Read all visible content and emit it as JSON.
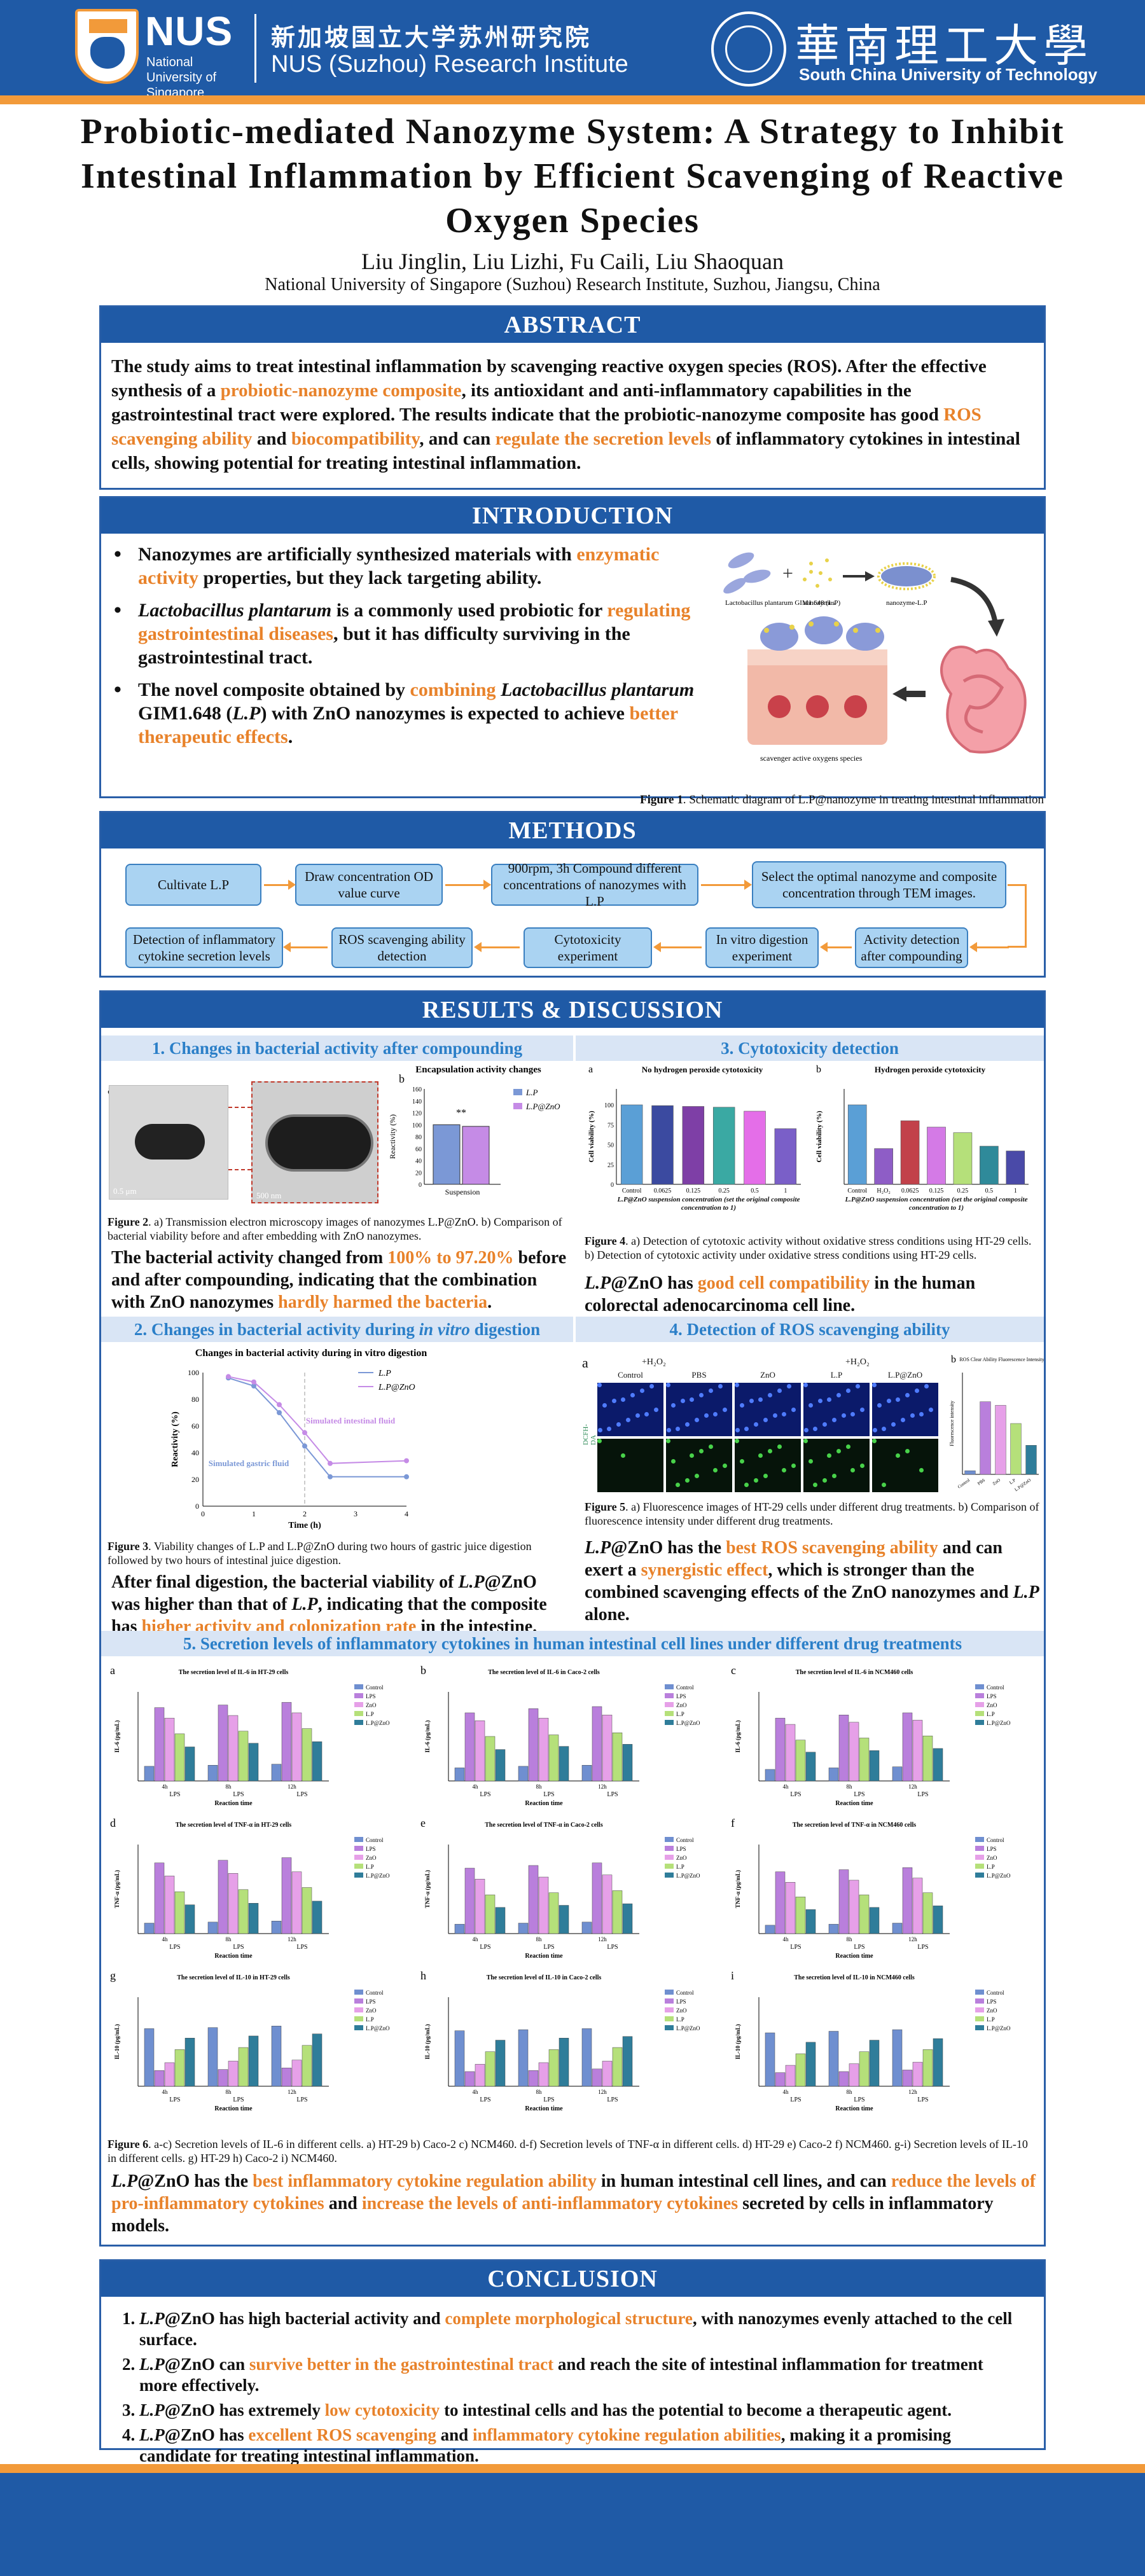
{
  "header": {
    "nus_logo_text": "NUS",
    "nus_sub": "National University of Singapore",
    "nus_cn": "新加坡国立大学苏州研究院",
    "nus_en": "NUS (Suzhou) Research Institute",
    "scut_cn": "華南理工大學",
    "scut_en": "South China University of Technology"
  },
  "title": "Probiotic-mediated Nanozyme System: A Strategy to Inhibit Intestinal Inflammation by Efficient Scavenging of Reactive Oxygen Species",
  "authors": "Liu Jinglin, Liu Lizhi, Fu Caili, Liu Shaoquan",
  "affiliation": "National University of Singapore (Suzhou) Research Institute, Suzhou, Jiangsu, China",
  "abstract": {
    "heading": "ABSTRACT",
    "t1": "The study aims to treat intestinal inflammation by scavenging reactive oxygen species (ROS). After the effective synthesis of a ",
    "h1": "probiotic-nanozyme composite",
    "t2": ", its antioxidant and anti-inflammatory capabilities in the gastrointestinal tract were explored. The results indicate that the probiotic-nanozyme composite has good ",
    "h2": "ROS scavenging ability",
    "t3": " and ",
    "h3": "biocompatibility",
    "t4": ", and can ",
    "h4": "regulate the secretion levels",
    "t5": " of inflammatory cytokines in intestinal cells, showing potential for treating intestinal inflammation."
  },
  "introduction": {
    "heading": "INTRODUCTION",
    "b1_t1": "Nanozymes are artificially synthesized materials with ",
    "b1_h1": "enzymatic activity",
    "b1_t2": " properties, but they lack targeting ability.",
    "b2_i1": "Lactobacillus plantarum",
    "b2_t1": " is a commonly used probiotic for ",
    "b2_h1": "regulating gastrointestinal diseases",
    "b2_t2": ", but it has difficulty surviving in the gastrointestinal tract.",
    "b3_t1": "The novel composite obtained by ",
    "b3_h1": "combining",
    "b3_i1": "Lactobacillus plantarum",
    "b3_t2": " GIM1.648 (",
    "b3_i2": "L.P",
    "b3_t3": ") with ZnO nanozymes is expected to achieve ",
    "b3_h2": "better therapeutic effects",
    "b3_t4": ".",
    "fig_label_lp": "Lactobacillus plantarum GIM1.648 (L.P)",
    "fig_label_nano": "nanozymes",
    "fig_label_lpnano": "nanozyme-L.P",
    "fig_label_ros": "scavenger active oxygens species",
    "fig1_bold": "Figure 1",
    "fig1_caption": ". Schematic diagram of L.P@nanozyme in treating intestinal inflammation"
  },
  "methods": {
    "heading": "METHODS",
    "steps": [
      "Cultivate L.P",
      "Draw concentration OD value curve",
      "900rpm, 3h Compound different concentrations of nanozymes with L.P",
      "Select the optimal nanozyme and composite concentration through TEM images.",
      "Activity detection after compounding",
      "In vitro digestion experiment",
      "Cytotoxicity experiment",
      "ROS scavenging ability detection",
      "Detection of inflammatory cytokine secretion levels"
    ]
  },
  "results": {
    "heading": "RESULTS & DISCUSSION",
    "s1_title": "1. Changes in bacterial activity after compounding",
    "s2_title_a": "2. Changes in bacterial activity during ",
    "s2_title_i": "in vitro",
    "s2_title_b": " digestion",
    "s3_title": "3. Cytotoxicity detection",
    "s4_title": "4. Detection of ROS scavenging ability",
    "s5_title": "5. Secretion levels of inflammatory cytokines in human intestinal cell lines under different drug treatments",
    "fig2_bold": "Figure 2",
    "fig2_caption": ". a) Transmission electron microscopy images of nanozymes L.P@ZnO. b) Comparison of bacterial viability before and after embedding with ZnO nanozymes.",
    "fig2_scale1": "0.5 μm",
    "fig2_scale2": "500 nm",
    "fig3_bold": "Figure 3",
    "fig3_caption": ". Viability changes of L.P and L.P@ZnO during two hours of gastric juice digestion followed by two hours of intestinal juice digestion.",
    "fig4_bold": "Figure 4",
    "fig4_caption": ". a) Detection of cytotoxic activity without oxidative stress conditions using HT-29 cells. b) Detection of cytotoxic activity under oxidative stress conditions using HT-29 cells.",
    "fig5_bold": "Figure 5",
    "fig5_caption": ". a) Fluorescence images of HT-29 cells under different drug treatments. b) Comparison of fluorescence intensity under different drug treatments.",
    "fig6_bold": "Figure 6",
    "fig6_caption": ". a-c) Secretion levels of IL-6 in different cells. a) HT-29 b) Caco-2 c) NCM460. d-f) Secretion levels of TNF-α in different cells. d) HT-29 e) Caco-2 f) NCM460. g-i) Secretion levels of IL-10 in different cells. g) HT-29 h) Caco-2 i) NCM460.",
    "s1_t1": "The bacterial activity changed from ",
    "s1_h1": "100% to 97.20%",
    "s1_t2": " before and after compounding, indicating that the combination with ZnO nanozymes ",
    "s1_h2": "hardly harmed the bacteria",
    "s1_t3": ".",
    "s2_t1": "After final digestion, the bacterial viability of ",
    "s2_i1": "L.P",
    "s2_t1b": "@ZnO was higher than that of ",
    "s2_i2": "L.P",
    "s2_t2": ", indicating that the composite has ",
    "s2_h1": "higher activity and colonization rate",
    "s2_t3": " in the intestine.",
    "s3_i1": "L.P",
    "s3_t1": "@ZnO has ",
    "s3_h1": "good cell compatibility",
    "s3_t2": " in the human colorectal adenocarcinoma cell line.",
    "s4_i1": "L.P",
    "s4_t1": "@ZnO has the ",
    "s4_h1": "best ROS scavenging ability",
    "s4_t2": " and can exert a ",
    "s4_h2": "synergistic effect",
    "s4_t3": ", which is stronger than the combined scavenging effects of the ZnO nanozymes and ",
    "s4_i2": "L.P",
    "s4_t4": " alone.",
    "s5_i1": "L.P",
    "s5_t1": "@ZnO has the ",
    "s5_h1": "best inflammatory cytokine regulation ability",
    "s5_t2": " in human intestinal cell lines, and can ",
    "s5_h2": "reduce the levels of pro-inflammatory cytokines",
    "s5_t3": " and ",
    "s5_h3": "increase the levels of anti-inflammatory cytokines",
    "s5_t4": " secreted by cells in inflammatory models.",
    "fig5_h2o2_1": "+H₂O₂",
    "fig5_h2o2_2": "+H₂O₂",
    "fig5_cols": [
      "Control",
      "PBS",
      "ZnO",
      "L.P",
      "L.P@ZnO"
    ],
    "fig5_row_label": "DCFH-DA",
    "fig5b_title": "ROS Clear Ability Fluorescence Intensity",
    "panel_letters": {
      "a": "a",
      "b": "b"
    }
  },
  "chart_data": [
    {
      "id": "fig2b",
      "type": "bar",
      "title": "Encapsulation activity changes",
      "categories": [
        "Suspension"
      ],
      "series": [
        {
          "name": "L.P",
          "values": [
            100
          ]
        },
        {
          "name": "L.P@ZnO",
          "values": [
            97.2
          ]
        }
      ],
      "ylabel": "Reactivity (%)",
      "ylim": [
        0,
        160
      ],
      "yticks": [
        "0",
        "20",
        "40",
        "60",
        "80",
        "100",
        "120",
        "140",
        "160"
      ],
      "annotation": "**"
    },
    {
      "id": "fig3",
      "type": "line",
      "title": "Changes in bacterial activity during in vitro digestion",
      "xlabel": "Time (h)",
      "ylabel": "Reactivity (%)",
      "xlim": [
        0,
        4
      ],
      "ylim": [
        0,
        100
      ],
      "xticks": [
        "0",
        "1",
        "2",
        "3",
        "4"
      ],
      "yticks": [
        "0",
        "20",
        "40",
        "60",
        "80",
        "100"
      ],
      "series": [
        {
          "name": "L.P",
          "x": [
            0.5,
            1,
            1.5,
            2,
            2.5,
            4
          ],
          "y": [
            96,
            90,
            70,
            45,
            22,
            22
          ]
        },
        {
          "name": "L.P@ZnO",
          "x": [
            0.5,
            1,
            1.5,
            2,
            2.5,
            4
          ],
          "y": [
            97,
            93,
            76,
            55,
            32,
            34
          ]
        }
      ],
      "annotations": [
        "Simulated gastric fluid",
        "Simulated intestinal fluid"
      ]
    },
    {
      "id": "fig4a",
      "type": "bar",
      "title": "No hydrogen peroxide cytotoxicity",
      "categories": [
        "Control",
        "0.0625",
        "0.125",
        "0.25",
        "0.5",
        "1"
      ],
      "values": [
        100,
        99,
        98,
        97,
        92,
        70
      ],
      "ylabel": "Cell viability (%)",
      "xlabel": "L.P@ZnO suspension concentration (set the original composite concentration to 1)",
      "ylim": [
        0,
        120
      ],
      "yticks": [
        "0",
        "25",
        "50",
        "75",
        "100"
      ]
    },
    {
      "id": "fig4b",
      "type": "bar",
      "title": "Hydrogen peroxide cytotoxicity",
      "categories": [
        "Control",
        "H₂O₂",
        "0.0625",
        "0.125",
        "0.25",
        "0.5",
        "1"
      ],
      "values": [
        100,
        45,
        80,
        72,
        65,
        48,
        42
      ],
      "ylabel": "Cell viability (%)",
      "xlabel": "L.P@ZnO suspension concentration (set the original composite concentration to 1)",
      "ylim": [
        0,
        120
      ]
    },
    {
      "id": "fig5b",
      "type": "bar",
      "title": "ROS Clear Ability Fluorescence Intensity",
      "categories": [
        "Control",
        "PBS",
        "ZnO",
        "L.P",
        "L.P@ZnO"
      ],
      "values": [
        5,
        100,
        95,
        70,
        40
      ],
      "ylabel": "Fluorescence intensity",
      "ylim": [
        0,
        140
      ]
    },
    {
      "id": "fig6",
      "type": "bar",
      "legend": [
        "Control",
        "LPS",
        "ZnO",
        "L.P",
        "L.P@ZnO"
      ],
      "legend_placement": "top-right",
      "groups": [
        "4h",
        "8h",
        "12h"
      ],
      "group_label": "LPS",
      "xlabel": "Reaction time",
      "panels": [
        {
          "letter": "a",
          "title": "The secretion level of IL-6 in HT-29 cells",
          "ylabel": "IL-6 (pg/mL)",
          "values": [
            [
              28,
              140,
              120,
              90,
              65
            ],
            [
              30,
              145,
              125,
              95,
              72
            ],
            [
              32,
              150,
              130,
              100,
              75
            ]
          ]
        },
        {
          "letter": "b",
          "title": "The secretion level of IL-6 in Caco-2 cells",
          "ylabel": "IL-6 (pg/mL)",
          "values": [
            [
              25,
              130,
              115,
              85,
              60
            ],
            [
              28,
              138,
              120,
              88,
              66
            ],
            [
              30,
              142,
              126,
              92,
              70
            ]
          ]
        },
        {
          "letter": "c",
          "title": "The secretion level of IL-6 in NCM460 cells",
          "ylabel": "IL-6 (pg/mL)",
          "values": [
            [
              22,
              120,
              108,
              78,
              55
            ],
            [
              25,
              126,
              112,
              82,
              58
            ],
            [
              27,
              130,
              116,
              86,
              62
            ]
          ]
        },
        {
          "letter": "d",
          "title": "The secretion level of TNF-α in HT-29 cells",
          "ylabel": "TNF-α (pg/mL)",
          "values": [
            [
              20,
              135,
              110,
              80,
              55
            ],
            [
              22,
              140,
              115,
              84,
              58
            ],
            [
              24,
              145,
              118,
              88,
              62
            ]
          ]
        },
        {
          "letter": "e",
          "title": "The secretion level of TNF-α in Caco-2 cells",
          "ylabel": "TNF-α (pg/mL)",
          "values": [
            [
              18,
              125,
              104,
              74,
              50
            ],
            [
              20,
              130,
              108,
              78,
              54
            ],
            [
              22,
              135,
              112,
              82,
              57
            ]
          ]
        },
        {
          "letter": "f",
          "title": "The secretion level of TNF-α in NCM460 cells",
          "ylabel": "TNF-α (pg/mL)",
          "values": [
            [
              16,
              118,
              98,
              70,
              46
            ],
            [
              18,
              122,
              102,
              74,
              50
            ],
            [
              20,
              126,
              106,
              78,
              53
            ]
          ]
        },
        {
          "letter": "g",
          "title": "The secretion level of IL-10 in HT-29 cells",
          "ylabel": "IL-10 (pg/mL)",
          "values": [
            [
              110,
              30,
              45,
              70,
              92
            ],
            [
              112,
              32,
              48,
              74,
              96
            ],
            [
              115,
              35,
              50,
              78,
              100
            ]
          ]
        },
        {
          "letter": "h",
          "title": "The secretion level of IL-10 in Caco-2 cells",
          "ylabel": "IL-10 (pg/mL)",
          "values": [
            [
              106,
              28,
              42,
              66,
              88
            ],
            [
              108,
              30,
              45,
              70,
              92
            ],
            [
              110,
              33,
              48,
              74,
              95
            ]
          ]
        },
        {
          "letter": "i",
          "title": "The secretion level of IL-10 in NCM460 cells",
          "ylabel": "IL-10 (pg/mL)",
          "values": [
            [
              102,
              26,
              40,
              62,
              84
            ],
            [
              105,
              28,
              43,
              66,
              88
            ],
            [
              108,
              31,
              46,
              70,
              91
            ]
          ]
        }
      ]
    }
  ],
  "colors": {
    "lp": "#7b98d6",
    "lpzno": "#c58be6",
    "f6": [
      "#6f8fd0",
      "#b97fdc",
      "#e6a0e8",
      "#b5e07a",
      "#2f7d9a"
    ]
  },
  "conclusion": {
    "heading": "CONCLUSION",
    "c1_i": "L.P",
    "c1_t1": "@ZnO has high bacterial activity and ",
    "c1_h1": "complete morphological structure",
    "c1_t2": ", with nanozymes evenly attached to the cell surface.",
    "c2_i": "L.P",
    "c2_t1": "@ZnO can ",
    "c2_h1": "survive better in the gastrointestinal tract",
    "c2_t2": " and reach the site of intestinal inflammation for treatment more effectively.",
    "c3_i": "L.P",
    "c3_t1": "@ZnO has extremely ",
    "c3_h1": "low cytotoxicity",
    "c3_t2": " to intestinal cells and has the potential to become a therapeutic agent.",
    "c4_i": "L.P",
    "c4_t1": "@ZnO has ",
    "c4_h1": "excellent ROS scavenging",
    "c4_t2": " and ",
    "c4_h2": "inflammatory cytokine regulation abilities",
    "c4_t3": ", making it a promising candidate for treating intestinal inflammation."
  }
}
